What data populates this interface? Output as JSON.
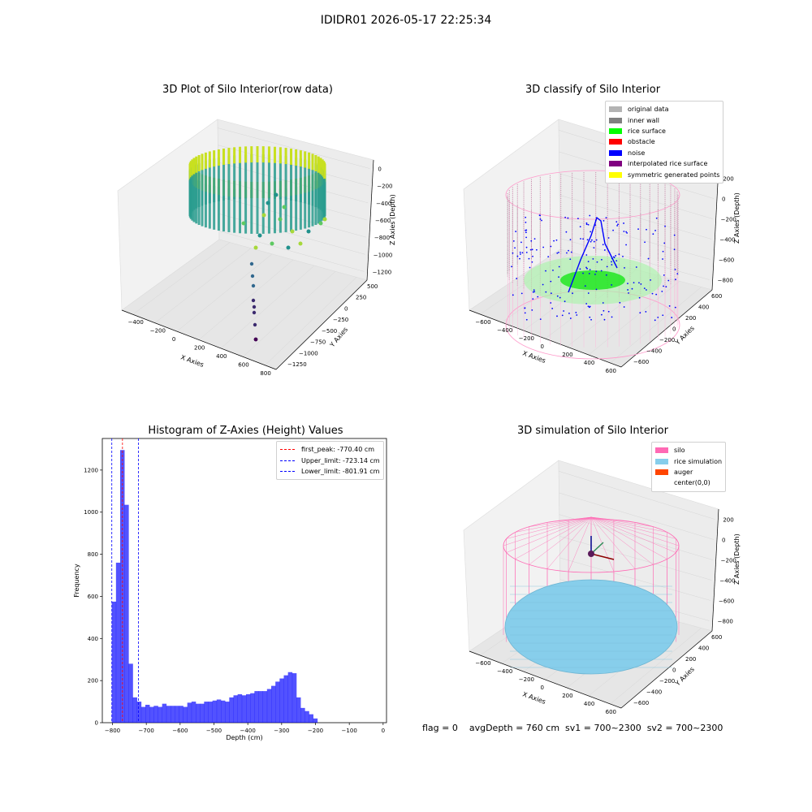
{
  "suptitle": "IDIDR01 2026-05-17 22:25:34",
  "footer": "flag = 0    avgDepth = 760 cm  sv1 = 700~2300  sv2 = 700~2300",
  "panels": {
    "raw": {
      "title": "3D Plot of Silo Interior(row data)",
      "xlabel": "X Axies",
      "ylabel": "Y Axies",
      "zlabel": "Z Axies (Depth)",
      "xticks": [
        "−400",
        "−200",
        "0",
        "200",
        "400",
        "600",
        "800"
      ],
      "yticks": [
        "500",
        "250",
        "0",
        "−250",
        "−500",
        "−750",
        "−1000",
        "−1250"
      ],
      "zticks": [
        "0",
        "−200",
        "−400",
        "−600",
        "−800",
        "−1000",
        "−1200"
      ]
    },
    "classify": {
      "title": "3D classify of Silo Interior",
      "xlabel": "X Axies",
      "ylabel": "Y Axies",
      "zlabel": "Z Axies (Depth)",
      "xticks": [
        "−600",
        "−400",
        "−200",
        "0",
        "200",
        "400",
        "600"
      ],
      "yticks": [
        "600",
        "400",
        "200",
        "0",
        "−200",
        "−400",
        "−600"
      ],
      "zticks": [
        "200",
        "0",
        "−200",
        "−400",
        "−600",
        "−800"
      ],
      "legend": [
        {
          "label": "original data",
          "color": "#b3b3b3"
        },
        {
          "label": "inner wall",
          "color": "#808080"
        },
        {
          "label": "rice surface",
          "color": "#00ff00"
        },
        {
          "label": "obstacle",
          "color": "#ff0000"
        },
        {
          "label": "noise",
          "color": "#0000ff"
        },
        {
          "label": "interpolated rice surface",
          "color": "#800080"
        },
        {
          "label": "symmetric generated points",
          "color": "#ffff00"
        }
      ]
    },
    "simulation": {
      "title": "3D simulation of Silo Interior",
      "xlabel": "X Axies",
      "ylabel": "Y Axies",
      "zlabel": "Z Axies (Depth)",
      "xticks": [
        "−600",
        "−400",
        "−200",
        "0",
        "200",
        "400",
        "600"
      ],
      "yticks": [
        "600",
        "400",
        "200",
        "0",
        "−200",
        "−400",
        "−600"
      ],
      "zticks": [
        "200",
        "0",
        "−200",
        "−400",
        "−600",
        "−800"
      ],
      "legend": [
        {
          "label": "silo",
          "color": "#ff69b4"
        },
        {
          "label": "rice simulation",
          "color": "#87ceeb"
        },
        {
          "label": "auger",
          "color": "#ff4500"
        },
        {
          "label": "center(0,0)",
          "color": "#ffffff"
        }
      ]
    }
  },
  "chart_data": {
    "type": "bar",
    "title": "Histogram of Z-Axies (Height) Values",
    "xlabel": "Depth (cm)",
    "ylabel": "Frequency",
    "xlim": [
      -830,
      10
    ],
    "ylim": [
      0,
      1350
    ],
    "xticks": [
      -800,
      -700,
      -600,
      -500,
      -400,
      -300,
      -200,
      -100,
      0
    ],
    "yticks": [
      0,
      200,
      400,
      600,
      800,
      1000,
      1200
    ],
    "bar_color": "#0000ff",
    "bin_start": -802,
    "bin_width": 12.4,
    "values": [
      575,
      760,
      1295,
      1035,
      280,
      120,
      100,
      75,
      85,
      75,
      80,
      75,
      90,
      80,
      80,
      80,
      80,
      75,
      95,
      100,
      90,
      90,
      100,
      100,
      105,
      110,
      105,
      100,
      120,
      130,
      135,
      130,
      135,
      140,
      150,
      150,
      150,
      160,
      175,
      195,
      210,
      225,
      240,
      235,
      120,
      70,
      55,
      40,
      20
    ],
    "lines": [
      {
        "label": "first_peak: -770.40 cm",
        "x": -770.4,
        "color": "#ff0000"
      },
      {
        "label": "Upper_limit: -723.14 cm",
        "x": -723.14,
        "color": "#0000ff"
      },
      {
        "label": "Lower_limit: -801.91 cm",
        "x": -801.91,
        "color": "#0000ff"
      }
    ]
  }
}
